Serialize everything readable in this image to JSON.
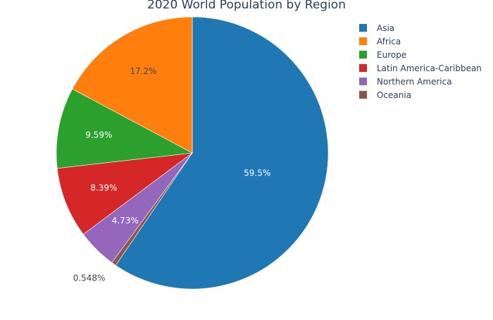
{
  "chart_data": {
    "type": "pie",
    "title": "2020 World Population by Region",
    "slices": [
      {
        "label": "Asia",
        "value": 59.5,
        "display": "59.5%",
        "color": "#1f77b4",
        "label_color": "#ffffff"
      },
      {
        "label": "Oceania",
        "value": 0.548,
        "display": "0.548%",
        "color": "#8c564b",
        "label_color": "#444444"
      },
      {
        "label": "Northern America",
        "value": 4.73,
        "display": "4.73%",
        "color": "#9467bd",
        "label_color": "#ffffff"
      },
      {
        "label": "Latin America-Caribbean",
        "value": 8.39,
        "display": "8.39%",
        "color": "#d62728",
        "label_color": "#ffffff"
      },
      {
        "label": "Europe",
        "value": 9.59,
        "display": "9.59%",
        "color": "#2ca02c",
        "label_color": "#ffffff"
      },
      {
        "label": "Africa",
        "value": 17.2,
        "display": "17.2%",
        "color": "#ff7f0e",
        "label_color": "#444444"
      }
    ],
    "legend": {
      "position": "top-right",
      "items": [
        "Asia",
        "Africa",
        "Europe",
        "Latin America-Caribbean",
        "Northern America",
        "Oceania"
      ]
    }
  }
}
